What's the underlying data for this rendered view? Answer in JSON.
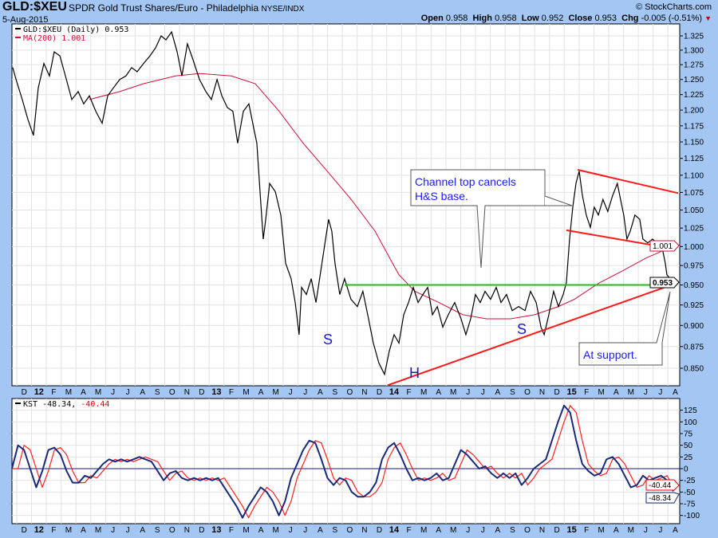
{
  "header": {
    "symbol": "GLD:$XEU",
    "name": "SPDR Gold Trust Shares/Euro - Philadelphia",
    "exchange": "NYSE/INDX",
    "date": "5-Aug-2015",
    "brand": "© StockCharts.com",
    "open_label": "Open",
    "open": "0.958",
    "high_label": "High",
    "high": "0.958",
    "low_label": "Low",
    "low": "0.952",
    "close_label": "Close",
    "close": "0.953",
    "chg_label": "Chg",
    "chg": "-0.005 (-0.51%)",
    "chg_arrow": "▼"
  },
  "colors": {
    "price": "#000000",
    "ma": "#d0103a",
    "support": "#ff1a1a",
    "neckline": "#22bb22",
    "kst": "#1a2a7a",
    "signal": "#ff2020",
    "annotation": "#1a1aff"
  },
  "chart_data": [
    {
      "type": "line",
      "title": "GLD:$XEU (Daily)",
      "scale": "log",
      "ylim": [
        0.83,
        1.345
      ],
      "xlim": [
        2011.89,
        2015.62
      ],
      "yticks": [
        "1.325",
        "1.300",
        "1.275",
        "1.250",
        "1.225",
        "1.200",
        "1.175",
        "1.150",
        "1.125",
        "1.100",
        "1.075",
        "1.050",
        "1.025",
        "1.000",
        "0.975",
        "0.950",
        "0.925",
        "0.900",
        "0.875",
        "0.850"
      ],
      "legend": [
        {
          "label": "GLD:$XEU (Daily) 0.953",
          "color": "#000000"
        },
        {
          "label": "MA(200) 1.001",
          "color": "#d0103a"
        }
      ],
      "last_tags": {
        "price": "0.953",
        "ma": "1.001"
      },
      "series": [
        {
          "name": "GLD:$XEU",
          "x": [
            2011.89,
            2011.913,
            2011.948,
            2011.98,
            2012.011,
            2012.038,
            2012.07,
            2012.101,
            2012.128,
            2012.16,
            2012.191,
            2012.227,
            2012.263,
            2012.294,
            2012.326,
            2012.362,
            2012.398,
            2012.429,
            2012.461,
            2012.497,
            2012.532,
            2012.564,
            2012.595,
            2012.631,
            2012.667,
            2012.699,
            2012.73,
            2012.757,
            2012.789,
            2012.82,
            2012.847,
            2012.878,
            2012.91,
            2012.946,
            2012.982,
            2013.013,
            2013.045,
            2013.072,
            2013.103,
            2013.134,
            2013.161,
            2013.193,
            2013.224,
            2013.251,
            2013.269,
            2013.287,
            2013.305,
            2013.319,
            2013.341,
            2013.373,
            2013.404,
            2013.431,
            2013.462,
            2013.485,
            2013.507,
            2013.521,
            2013.548,
            2013.575,
            2013.602,
            2013.629,
            2013.656,
            2013.673,
            2013.691,
            2013.709,
            2013.736,
            2013.763,
            2013.799,
            2013.835,
            2013.866,
            2013.898,
            2013.925,
            2013.956,
            2013.988,
            2014.015,
            2014.042,
            2014.069,
            2014.096,
            2014.123,
            2014.15,
            2014.177,
            2014.204,
            2014.231,
            2014.258,
            2014.285,
            2014.316,
            2014.347,
            2014.383,
            2014.419,
            2014.446,
            2014.473,
            2014.5,
            2014.527,
            2014.554,
            2014.585,
            2014.617,
            2014.644,
            2014.675,
            2014.707,
            2014.743,
            2014.779,
            2014.81,
            2014.842,
            2014.869,
            2014.887,
            2014.913,
            2014.94,
            2014.967,
            2014.994,
            2015.012,
            2015.03,
            2015.048,
            2015.066,
            2015.084,
            2015.102,
            2015.124,
            2015.147,
            2015.169,
            2015.192,
            2015.218,
            2015.245,
            2015.273,
            2015.299,
            2015.317,
            2015.335,
            2015.353,
            2015.372,
            2015.398,
            2015.425,
            2015.443,
            2015.47,
            2015.497,
            2015.524,
            2015.551,
            2015.569,
            2015.578,
            2015.596,
            2015.614
          ],
          "y": [
            1.27,
            1.25,
            1.217,
            1.185,
            1.16,
            1.236,
            1.277,
            1.256,
            1.297,
            1.29,
            1.256,
            1.217,
            1.23,
            1.21,
            1.223,
            1.198,
            1.179,
            1.223,
            1.236,
            1.25,
            1.256,
            1.27,
            1.263,
            1.277,
            1.29,
            1.304,
            1.325,
            1.318,
            1.332,
            1.297,
            1.256,
            1.311,
            1.283,
            1.25,
            1.23,
            1.217,
            1.25,
            1.223,
            1.204,
            1.198,
            1.148,
            1.198,
            1.21,
            1.172,
            1.148,
            1.076,
            1.01,
            1.037,
            1.088,
            1.076,
            1.043,
            0.978,
            0.958,
            0.928,
            0.889,
            0.947,
            0.938,
            0.958,
            0.928,
            0.968,
            1.01,
            1.037,
            1.021,
            0.978,
            0.938,
            0.958,
            0.932,
            0.923,
            0.942,
            0.908,
            0.879,
            0.856,
            0.843,
            0.87,
            0.889,
            0.879,
            0.913,
            0.928,
            0.947,
            0.928,
            0.938,
            0.947,
            0.913,
            0.923,
            0.898,
            0.913,
            0.928,
            0.908,
            0.889,
            0.908,
            0.938,
            0.928,
            0.942,
            0.932,
            0.947,
            0.928,
            0.938,
            0.918,
            0.923,
            0.918,
            0.942,
            0.928,
            0.898,
            0.889,
            0.913,
            0.942,
            0.923,
            0.938,
            0.953,
            1.01,
            1.054,
            1.088,
            1.106,
            1.071,
            1.043,
            1.026,
            1.054,
            1.043,
            1.065,
            1.048,
            1.071,
            1.088,
            1.065,
            1.043,
            1.01,
            1.021,
            1.043,
            1.037,
            1.01,
            1.005,
            1.01,
            1.005,
            0.999,
            0.978,
            0.963,
            0.958,
            0.953
          ]
        },
        {
          "name": "MA(200)",
          "x": [
            2012.326,
            2012.497,
            2012.631,
            2012.811,
            2012.946,
            2013.125,
            2013.26,
            2013.395,
            2013.53,
            2013.665,
            2013.8,
            2013.934,
            2014.069,
            2014.159,
            2014.294,
            2014.429,
            2014.563,
            2014.698,
            2014.833,
            2014.967,
            2015.057,
            2015.192,
            2015.327,
            2015.462,
            2015.62
          ],
          "y": [
            1.217,
            1.23,
            1.243,
            1.256,
            1.26,
            1.256,
            1.243,
            1.198,
            1.148,
            1.106,
            1.065,
            1.021,
            0.963,
            0.942,
            0.928,
            0.913,
            0.908,
            0.908,
            0.913,
            0.923,
            0.932,
            0.952,
            0.968,
            0.985,
            1.001
          ]
        }
      ],
      "trendlines": [
        {
          "name": "neckline",
          "x": [
            2013.763,
            2015.605
          ],
          "y": [
            0.95,
            0.95
          ]
        },
        {
          "name": "support",
          "x": [
            2014.006,
            2015.641
          ],
          "y": [
            0.831,
            0.953
          ]
        },
        {
          "name": "channel-top",
          "x": [
            2015.075,
            2015.641
          ],
          "y": [
            1.108,
            1.074
          ]
        },
        {
          "name": "channel-bottom",
          "x": [
            2015.012,
            2015.596
          ],
          "y": [
            1.022,
            0.998
          ]
        }
      ],
      "annotations": [
        {
          "text1": "Channel top cancels",
          "text2": "H&S base."
        },
        {
          "text1": "At support."
        }
      ],
      "pattern_labels": [
        "S",
        "H",
        "S"
      ]
    },
    {
      "type": "line",
      "title": "KST",
      "legend_name": "KST",
      "legend_kst": "-48.34,",
      "legend_signal": "-40.44",
      "ylim": [
        -110,
        140
      ],
      "yticks": [
        "125",
        "100",
        "75",
        "50",
        "25",
        "0",
        "-25",
        "-50",
        "-75",
        "-100"
      ],
      "last_tags": {
        "kst": "-48.34",
        "signal": "-40.44"
      },
      "x_range": [
        2011.89,
        2015.614
      ],
      "series": [
        {
          "name": "KST",
          "values": [
            0,
            50,
            40,
            0,
            -40,
            -5,
            40,
            45,
            30,
            -5,
            -30,
            -30,
            -15,
            -20,
            -5,
            10,
            20,
            15,
            20,
            15,
            20,
            25,
            20,
            15,
            -5,
            -25,
            -10,
            -5,
            -20,
            -25,
            -20,
            -25,
            -20,
            -25,
            -20,
            -40,
            -60,
            -80,
            -105,
            -80,
            -60,
            -40,
            -50,
            -70,
            -100,
            -70,
            -20,
            10,
            40,
            60,
            55,
            20,
            -20,
            -35,
            -20,
            -25,
            -50,
            -60,
            -60,
            -50,
            -30,
            20,
            45,
            55,
            30,
            0,
            -25,
            -20,
            -25,
            -20,
            -10,
            -25,
            -20,
            10,
            40,
            30,
            15,
            0,
            5,
            -10,
            -20,
            -10,
            -20,
            -10,
            -35,
            -20,
            0,
            10,
            20,
            60,
            100,
            135,
            120,
            60,
            10,
            -5,
            -15,
            -10,
            20,
            25,
            10,
            -15,
            -40,
            -35,
            -15,
            -25,
            -20,
            -15,
            -25,
            -48.34
          ]
        },
        {
          "name": "Signal",
          "values": [
            0,
            0,
            50,
            40,
            0,
            -40,
            -5,
            40,
            45,
            30,
            -5,
            -30,
            -30,
            -15,
            -20,
            -5,
            10,
            20,
            15,
            20,
            15,
            20,
            25,
            20,
            15,
            -5,
            -25,
            -10,
            -5,
            -20,
            -25,
            -20,
            -25,
            -20,
            -25,
            -20,
            -40,
            -60,
            -80,
            -105,
            -80,
            -60,
            -40,
            -50,
            -70,
            -100,
            -70,
            -20,
            10,
            40,
            60,
            55,
            20,
            -20,
            -35,
            -20,
            -25,
            -50,
            -60,
            -60,
            -50,
            -30,
            20,
            45,
            55,
            30,
            0,
            -25,
            -20,
            -25,
            -20,
            -10,
            -25,
            -20,
            10,
            40,
            30,
            15,
            0,
            5,
            -10,
            -20,
            -10,
            -20,
            -10,
            -35,
            -20,
            0,
            10,
            20,
            60,
            100,
            135,
            120,
            60,
            10,
            -5,
            -15,
            -10,
            20,
            25,
            10,
            -15,
            -40,
            -35,
            -15,
            -25,
            -20,
            -15,
            -40.44
          ]
        }
      ]
    }
  ],
  "x_axis": {
    "start_month": "Dec 2011",
    "labels": [
      "D",
      "12",
      "F",
      "M",
      "A",
      "M",
      "J",
      "J",
      "A",
      "S",
      "O",
      "N",
      "D",
      "13",
      "F",
      "M",
      "A",
      "M",
      "J",
      "J",
      "A",
      "S",
      "O",
      "N",
      "D",
      "14",
      "F",
      "M",
      "A",
      "M",
      "J",
      "J",
      "A",
      "S",
      "O",
      "N",
      "D",
      "15",
      "F",
      "M",
      "A",
      "M",
      "J",
      "J",
      "A"
    ]
  }
}
